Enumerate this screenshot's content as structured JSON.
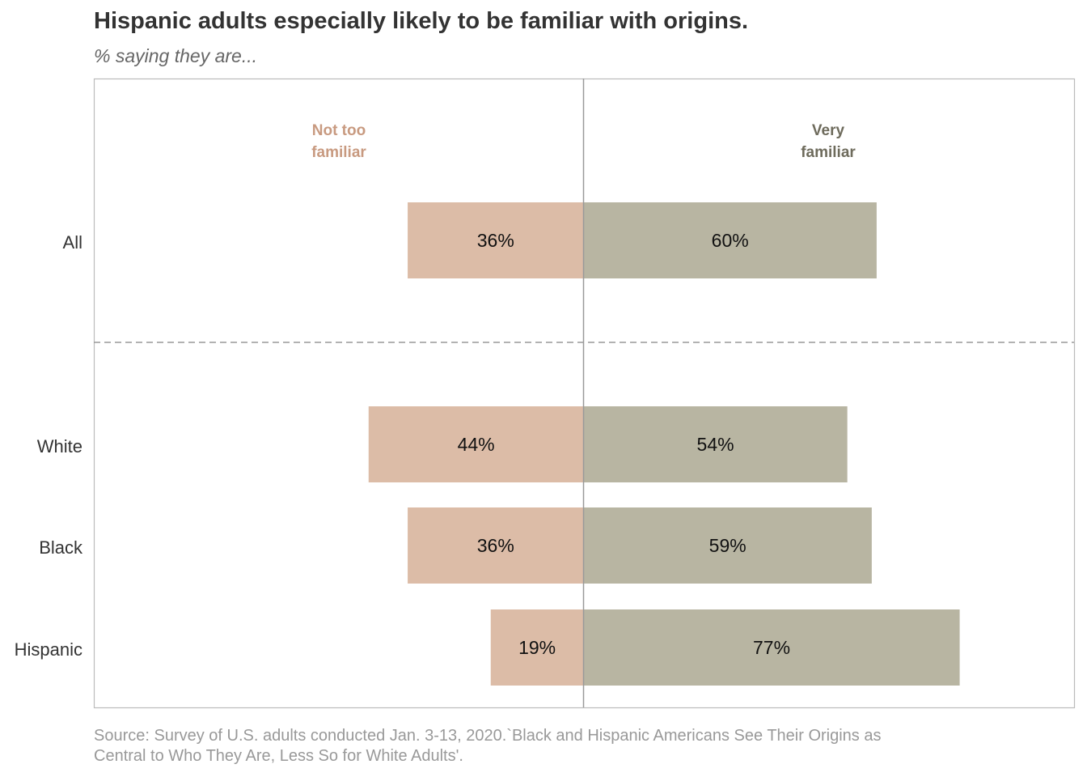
{
  "title": "Hispanic adults especially likely to be familiar with origins.",
  "subtitle": "% saying they are...",
  "source": "Source: Survey of U.S. adults conducted Jan. 3-13, 2020.`Black and Hispanic Americans See Their Origins as Central to Who They Are, Less So for White Adults'.",
  "colors": {
    "not_too_familiar": "#dcbca7",
    "not_too_familiar_label": "#c89a80",
    "very_familiar": "#b8b5a2",
    "very_familiar_label": "#6e6b5c",
    "axis": "#999999",
    "text": "#333333"
  },
  "chart_data": {
    "type": "bar",
    "orientation": "horizontal-diverging",
    "title": "Hispanic adults especially likely to be familiar with origins.",
    "subtitle": "% saying they are...",
    "categories": [
      "All",
      "White",
      "Black",
      "Hispanic"
    ],
    "series": [
      {
        "name_lines": [
          "Not too",
          "familiar"
        ],
        "direction": "left",
        "values": [
          36,
          44,
          36,
          19
        ],
        "labels": [
          "36%",
          "44%",
          "36%",
          "19%"
        ]
      },
      {
        "name_lines": [
          "Very",
          "familiar"
        ],
        "direction": "right",
        "values": [
          60,
          54,
          59,
          77
        ],
        "labels": [
          "60%",
          "54%",
          "59%",
          "77%"
        ]
      }
    ],
    "separator_after": "All",
    "xlim": [
      -100,
      100
    ],
    "grid": false
  }
}
